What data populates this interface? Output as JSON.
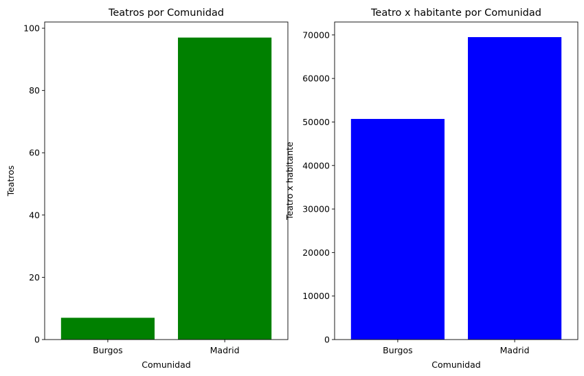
{
  "chart_data": [
    {
      "type": "bar",
      "title": "Teatros por Comunidad",
      "xlabel": "Comunidad",
      "ylabel": "Teatros",
      "categories": [
        "Burgos",
        "Madrid"
      ],
      "values": [
        7,
        97
      ],
      "ylim": [
        0,
        102
      ],
      "yticks": [
        0,
        20,
        40,
        60,
        80,
        100
      ],
      "color": "#008000",
      "grid": false
    },
    {
      "type": "bar",
      "title": "Teatro x habitante por Comunidad",
      "xlabel": "Comunidad",
      "ylabel": "Teatro x habitante",
      "categories": [
        "Burgos",
        "Madrid"
      ],
      "values": [
        50700,
        69500
      ],
      "ylim": [
        0,
        72975
      ],
      "yticks": [
        0,
        10000,
        20000,
        30000,
        40000,
        50000,
        60000,
        70000
      ],
      "color": "#0000ff",
      "grid": false
    }
  ]
}
